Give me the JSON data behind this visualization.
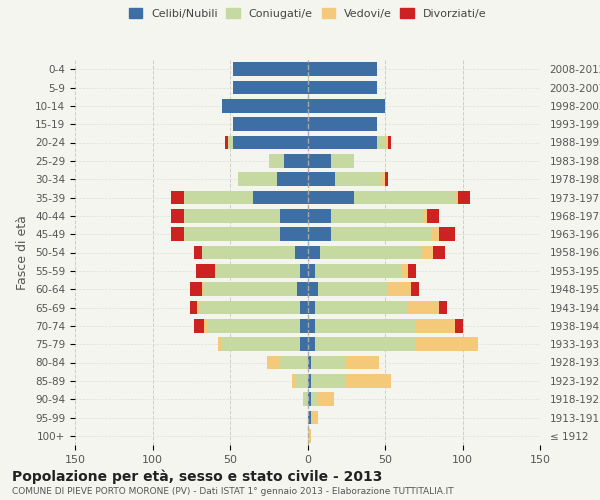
{
  "age_groups": [
    "100+",
    "95-99",
    "90-94",
    "85-89",
    "80-84",
    "75-79",
    "70-74",
    "65-69",
    "60-64",
    "55-59",
    "50-54",
    "45-49",
    "40-44",
    "35-39",
    "30-34",
    "25-29",
    "20-24",
    "15-19",
    "10-14",
    "5-9",
    "0-4"
  ],
  "birth_years": [
    "≤ 1912",
    "1913-1917",
    "1918-1922",
    "1923-1927",
    "1928-1932",
    "1933-1937",
    "1938-1942",
    "1943-1947",
    "1948-1952",
    "1953-1957",
    "1958-1962",
    "1963-1967",
    "1968-1972",
    "1973-1977",
    "1978-1982",
    "1983-1987",
    "1988-1992",
    "1993-1997",
    "1998-2002",
    "2003-2007",
    "2008-2012"
  ],
  "males": {
    "celibi": [
      0,
      0,
      0,
      0,
      0,
      5,
      5,
      5,
      7,
      5,
      8,
      18,
      18,
      35,
      20,
      15,
      48,
      48,
      55,
      48,
      48
    ],
    "coniugati": [
      0,
      0,
      3,
      8,
      18,
      50,
      60,
      65,
      60,
      55,
      60,
      62,
      62,
      45,
      25,
      10,
      3,
      0,
      0,
      0,
      0
    ],
    "vedovi": [
      0,
      0,
      0,
      2,
      8,
      3,
      2,
      1,
      1,
      0,
      0,
      0,
      0,
      0,
      0,
      0,
      0,
      0,
      0,
      0,
      0
    ],
    "divorziati": [
      0,
      0,
      0,
      0,
      0,
      0,
      6,
      5,
      8,
      12,
      5,
      8,
      8,
      8,
      0,
      0,
      2,
      0,
      0,
      0,
      0
    ]
  },
  "females": {
    "celibi": [
      0,
      2,
      2,
      2,
      2,
      5,
      5,
      5,
      7,
      5,
      8,
      15,
      15,
      30,
      18,
      15,
      45,
      45,
      50,
      45,
      45
    ],
    "coniugati": [
      0,
      0,
      5,
      22,
      22,
      65,
      65,
      60,
      45,
      55,
      65,
      65,
      60,
      65,
      30,
      15,
      5,
      0,
      0,
      0,
      0
    ],
    "vedovi": [
      2,
      5,
      10,
      30,
      22,
      40,
      25,
      20,
      15,
      5,
      8,
      5,
      2,
      2,
      2,
      0,
      2,
      0,
      0,
      0,
      0
    ],
    "divorziati": [
      0,
      0,
      0,
      0,
      0,
      0,
      5,
      5,
      5,
      5,
      8,
      10,
      8,
      8,
      2,
      0,
      2,
      0,
      0,
      0,
      0
    ]
  },
  "colors": {
    "celibi": "#3d6fa5",
    "coniugati": "#c5d9a0",
    "vedovi": "#f5c97a",
    "divorziati": "#cc2222"
  },
  "legend_labels": [
    "Celibi/Nubili",
    "Coniugati/e",
    "Vedovi/e",
    "Divorziati/e"
  ],
  "title": "Popolazione per età, sesso e stato civile - 2013",
  "subtitle": "COMUNE DI PIEVE PORTO MORONE (PV) - Dati ISTAT 1° gennaio 2013 - Elaborazione TUTTITALIA.IT",
  "ylabel_left": "Fasce di età",
  "xlim": 150,
  "bg_color": "#f5f5f0",
  "plot_bg": "#ffffff"
}
